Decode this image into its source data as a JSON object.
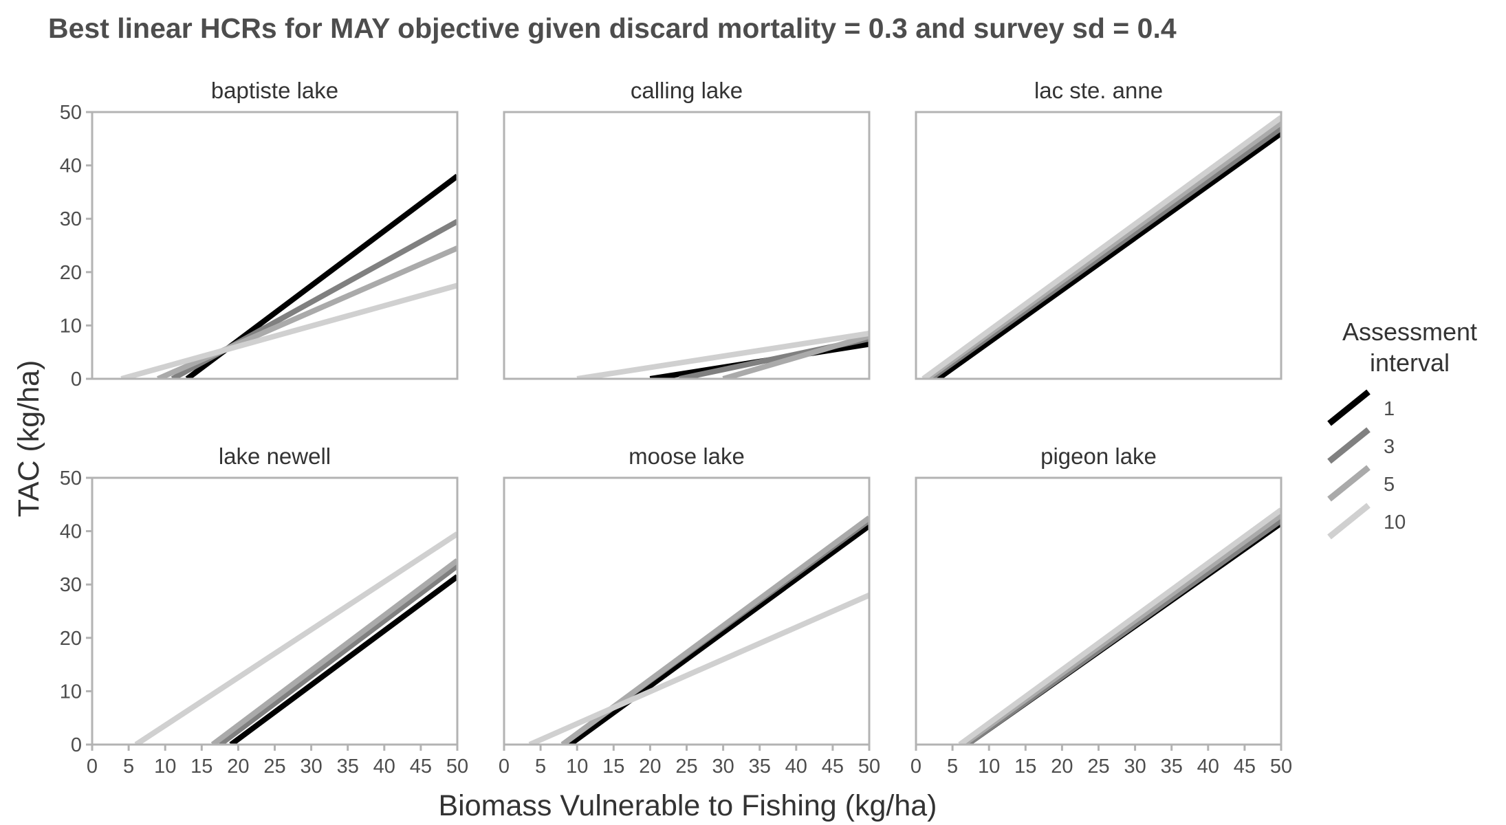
{
  "title": "Best linear HCRs for MAY objective given discard mortality = 0.3 and survey sd = 0.4",
  "xlabel": "Biomass Vulnerable to Fishing (kg/ha)",
  "ylabel": "TAC (kg/ha)",
  "legend": {
    "title_lines": [
      "Assessment",
      "interval"
    ],
    "entries": [
      {
        "label": "1",
        "color": "#000000"
      },
      {
        "label": "3",
        "color": "#808080"
      },
      {
        "label": "5",
        "color": "#aaaaaa"
      },
      {
        "label": "10",
        "color": "#d0d0d0"
      }
    ],
    "placement": "right"
  },
  "colors": {
    "frame": "#b3b3b3",
    "tick": "#b3b3b3",
    "text": "#4d4d4d"
  },
  "chart_data": {
    "type": "line",
    "layout": "facet-wrap 2 rows x 3 columns",
    "xlim": [
      0,
      50
    ],
    "ylim": [
      0,
      50
    ],
    "x_ticks": [
      0,
      5,
      10,
      15,
      20,
      25,
      30,
      35,
      40,
      45,
      50
    ],
    "y_ticks": [
      0,
      10,
      20,
      30,
      40,
      50
    ],
    "grid": false,
    "series_names": [
      "1",
      "3",
      "5",
      "10"
    ],
    "panels": [
      {
        "name": "baptiste lake",
        "series": [
          {
            "name": "1",
            "x": [
              13,
              50
            ],
            "y": [
              0,
              38
            ]
          },
          {
            "name": "3",
            "x": [
              11,
              50
            ],
            "y": [
              0,
              29.5
            ]
          },
          {
            "name": "5",
            "x": [
              9,
              50
            ],
            "y": [
              0,
              24.5
            ]
          },
          {
            "name": "10",
            "x": [
              4,
              50
            ],
            "y": [
              0,
              17.5
            ]
          }
        ]
      },
      {
        "name": "calling lake",
        "series": [
          {
            "name": "1",
            "x": [
              20,
              50
            ],
            "y": [
              0,
              6.5
            ]
          },
          {
            "name": "3",
            "x": [
              24,
              50
            ],
            "y": [
              0,
              7.5
            ]
          },
          {
            "name": "5",
            "x": [
              30,
              50
            ],
            "y": [
              0,
              8
            ]
          },
          {
            "name": "10",
            "x": [
              10,
              50
            ],
            "y": [
              0,
              8.5
            ]
          }
        ]
      },
      {
        "name": "lac ste. anne",
        "series": [
          {
            "name": "1",
            "x": [
              3,
              50
            ],
            "y": [
              0,
              46
            ]
          },
          {
            "name": "3",
            "x": [
              2,
              50
            ],
            "y": [
              0,
              47
            ]
          },
          {
            "name": "5",
            "x": [
              1.5,
              50
            ],
            "y": [
              0,
              48
            ]
          },
          {
            "name": "10",
            "x": [
              1,
              50
            ],
            "y": [
              0,
              49
            ]
          }
        ]
      },
      {
        "name": "lake newell",
        "series": [
          {
            "name": "1",
            "x": [
              19,
              50
            ],
            "y": [
              0,
              31.5
            ]
          },
          {
            "name": "3",
            "x": [
              17.5,
              50
            ],
            "y": [
              0,
              33.5
            ]
          },
          {
            "name": "5",
            "x": [
              16.5,
              50
            ],
            "y": [
              0,
              34.5
            ]
          },
          {
            "name": "10",
            "x": [
              6,
              50
            ],
            "y": [
              0,
              39.5
            ]
          }
        ]
      },
      {
        "name": "moose lake",
        "series": [
          {
            "name": "1",
            "x": [
              9,
              50
            ],
            "y": [
              0,
              41
            ]
          },
          {
            "name": "3",
            "x": [
              8,
              50
            ],
            "y": [
              0,
              42
            ]
          },
          {
            "name": "5",
            "x": [
              8,
              50
            ],
            "y": [
              0,
              42.5
            ]
          },
          {
            "name": "10",
            "x": [
              3.5,
              50
            ],
            "y": [
              0,
              28
            ]
          }
        ]
      },
      {
        "name": "pigeon lake",
        "series": [
          {
            "name": "1",
            "x": [
              7,
              50
            ],
            "y": [
              0,
              41.5
            ]
          },
          {
            "name": "3",
            "x": [
              7,
              50
            ],
            "y": [
              0,
              42
            ]
          },
          {
            "name": "5",
            "x": [
              6.5,
              50
            ],
            "y": [
              0,
              43
            ]
          },
          {
            "name": "10",
            "x": [
              6,
              50
            ],
            "y": [
              0,
              44
            ]
          }
        ]
      }
    ]
  }
}
